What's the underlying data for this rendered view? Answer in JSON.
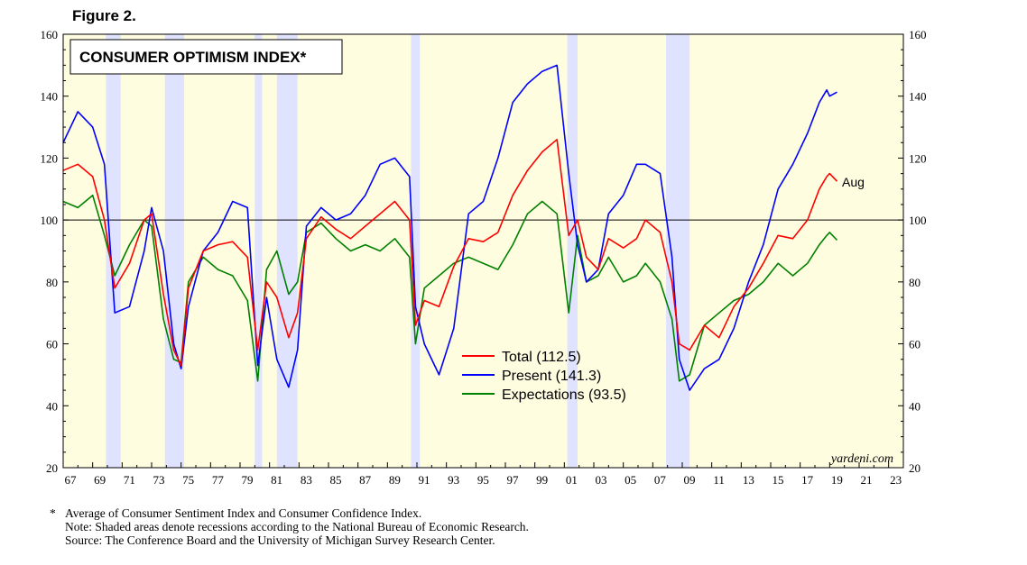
{
  "figure_label": "Figure 2.",
  "footnotes": {
    "star": "*",
    "line1": "Average of Consumer Sentiment Index and Consumer Confidence Index.",
    "line2": "Note: Shaded areas denote recessions according to the National Bureau of Economic Research.",
    "line3": "Source: The Conference Board and the University of Michigan Survey Research Center."
  },
  "colors": {
    "plot_bg": "#fffde0",
    "recession": "#e0e3ff",
    "total": "#ff0000",
    "present": "#0000ff",
    "expectations": "#008000"
  },
  "chart_data": {
    "type": "line",
    "title": "CONSUMER OPTIMISM INDEX*",
    "credit": "yardeni.com",
    "annotation": "Aug",
    "x_range": [
      1967,
      2024
    ],
    "ylim": [
      20,
      160
    ],
    "y_ticks": [
      20,
      40,
      60,
      80,
      100,
      120,
      140,
      160
    ],
    "x_tick_labels": [
      "67",
      "69",
      "71",
      "73",
      "75",
      "77",
      "79",
      "81",
      "83",
      "85",
      "87",
      "89",
      "91",
      "93",
      "95",
      "97",
      "99",
      "01",
      "03",
      "05",
      "07",
      "09",
      "11",
      "13",
      "15",
      "17",
      "19",
      "21",
      "23"
    ],
    "reference_line": 100,
    "grid": false,
    "legend_position": "center-bottom",
    "recessions": [
      [
        1969.9,
        1970.9
      ],
      [
        1973.9,
        1975.2
      ],
      [
        1980.0,
        1980.5
      ],
      [
        1981.5,
        1982.9
      ],
      [
        1990.6,
        1991.2
      ],
      [
        2001.2,
        2001.9
      ],
      [
        2007.9,
        2009.5
      ]
    ],
    "x": [
      1967.0,
      1968.0,
      1969.0,
      1969.8,
      1970.5,
      1971.5,
      1972.5,
      1973.0,
      1973.8,
      1974.5,
      1975.0,
      1975.5,
      1976.5,
      1977.5,
      1978.5,
      1979.5,
      1980.2,
      1980.8,
      1981.5,
      1982.3,
      1982.9,
      1983.5,
      1984.5,
      1985.5,
      1986.5,
      1987.5,
      1988.5,
      1989.5,
      1990.5,
      1990.9,
      1991.5,
      1992.5,
      1993.5,
      1994.5,
      1995.5,
      1996.5,
      1997.5,
      1998.5,
      1999.5,
      2000.5,
      2001.3,
      2001.9,
      2002.5,
      2003.3,
      2004.0,
      2005.0,
      2005.9,
      2006.5,
      2007.5,
      2008.3,
      2008.8,
      2009.5,
      2010.5,
      2011.5,
      2012.5,
      2013.5,
      2014.5,
      2015.5,
      2016.5,
      2017.5,
      2018.3,
      2018.8,
      2019.0,
      2019.5
    ],
    "series": [
      {
        "name": "Total (112.5)",
        "values": [
          116,
          118,
          114,
          100,
          78,
          86,
          100,
          102,
          76,
          58,
          53,
          78,
          90,
          92,
          93,
          88,
          58,
          80,
          75,
          62,
          70,
          94,
          101,
          97,
          94,
          98,
          102,
          106,
          100,
          66,
          74,
          72,
          85,
          94,
          93,
          96,
          108,
          116,
          122,
          126,
          95,
          100,
          88,
          84,
          94,
          91,
          94,
          100,
          96,
          80,
          60,
          58,
          66,
          62,
          72,
          78,
          86,
          95,
          94,
          100,
          110,
          114,
          115,
          112.5
        ]
      },
      {
        "name": "Present (141.3)",
        "values": [
          125,
          135,
          130,
          118,
          70,
          72,
          90,
          104,
          90,
          60,
          52,
          72,
          90,
          96,
          106,
          104,
          53,
          75,
          55,
          46,
          58,
          98,
          104,
          100,
          102,
          108,
          118,
          120,
          114,
          72,
          60,
          50,
          65,
          102,
          106,
          120,
          138,
          144,
          148,
          150,
          115,
          92,
          80,
          84,
          102,
          108,
          118,
          118,
          115,
          88,
          55,
          45,
          52,
          55,
          65,
          80,
          92,
          110,
          118,
          128,
          138,
          142,
          140,
          141.3
        ]
      },
      {
        "name": "Expectations (93.5)",
        "values": [
          106,
          104,
          108,
          95,
          82,
          92,
          100,
          98,
          68,
          55,
          54,
          80,
          88,
          84,
          82,
          74,
          48,
          84,
          90,
          76,
          80,
          96,
          99,
          94,
          90,
          92,
          90,
          94,
          88,
          60,
          78,
          82,
          86,
          88,
          86,
          84,
          92,
          102,
          106,
          102,
          70,
          95,
          80,
          82,
          88,
          80,
          82,
          86,
          80,
          68,
          48,
          50,
          66,
          70,
          74,
          76,
          80,
          86,
          82,
          86,
          92,
          95,
          96,
          93.5
        ]
      }
    ]
  }
}
